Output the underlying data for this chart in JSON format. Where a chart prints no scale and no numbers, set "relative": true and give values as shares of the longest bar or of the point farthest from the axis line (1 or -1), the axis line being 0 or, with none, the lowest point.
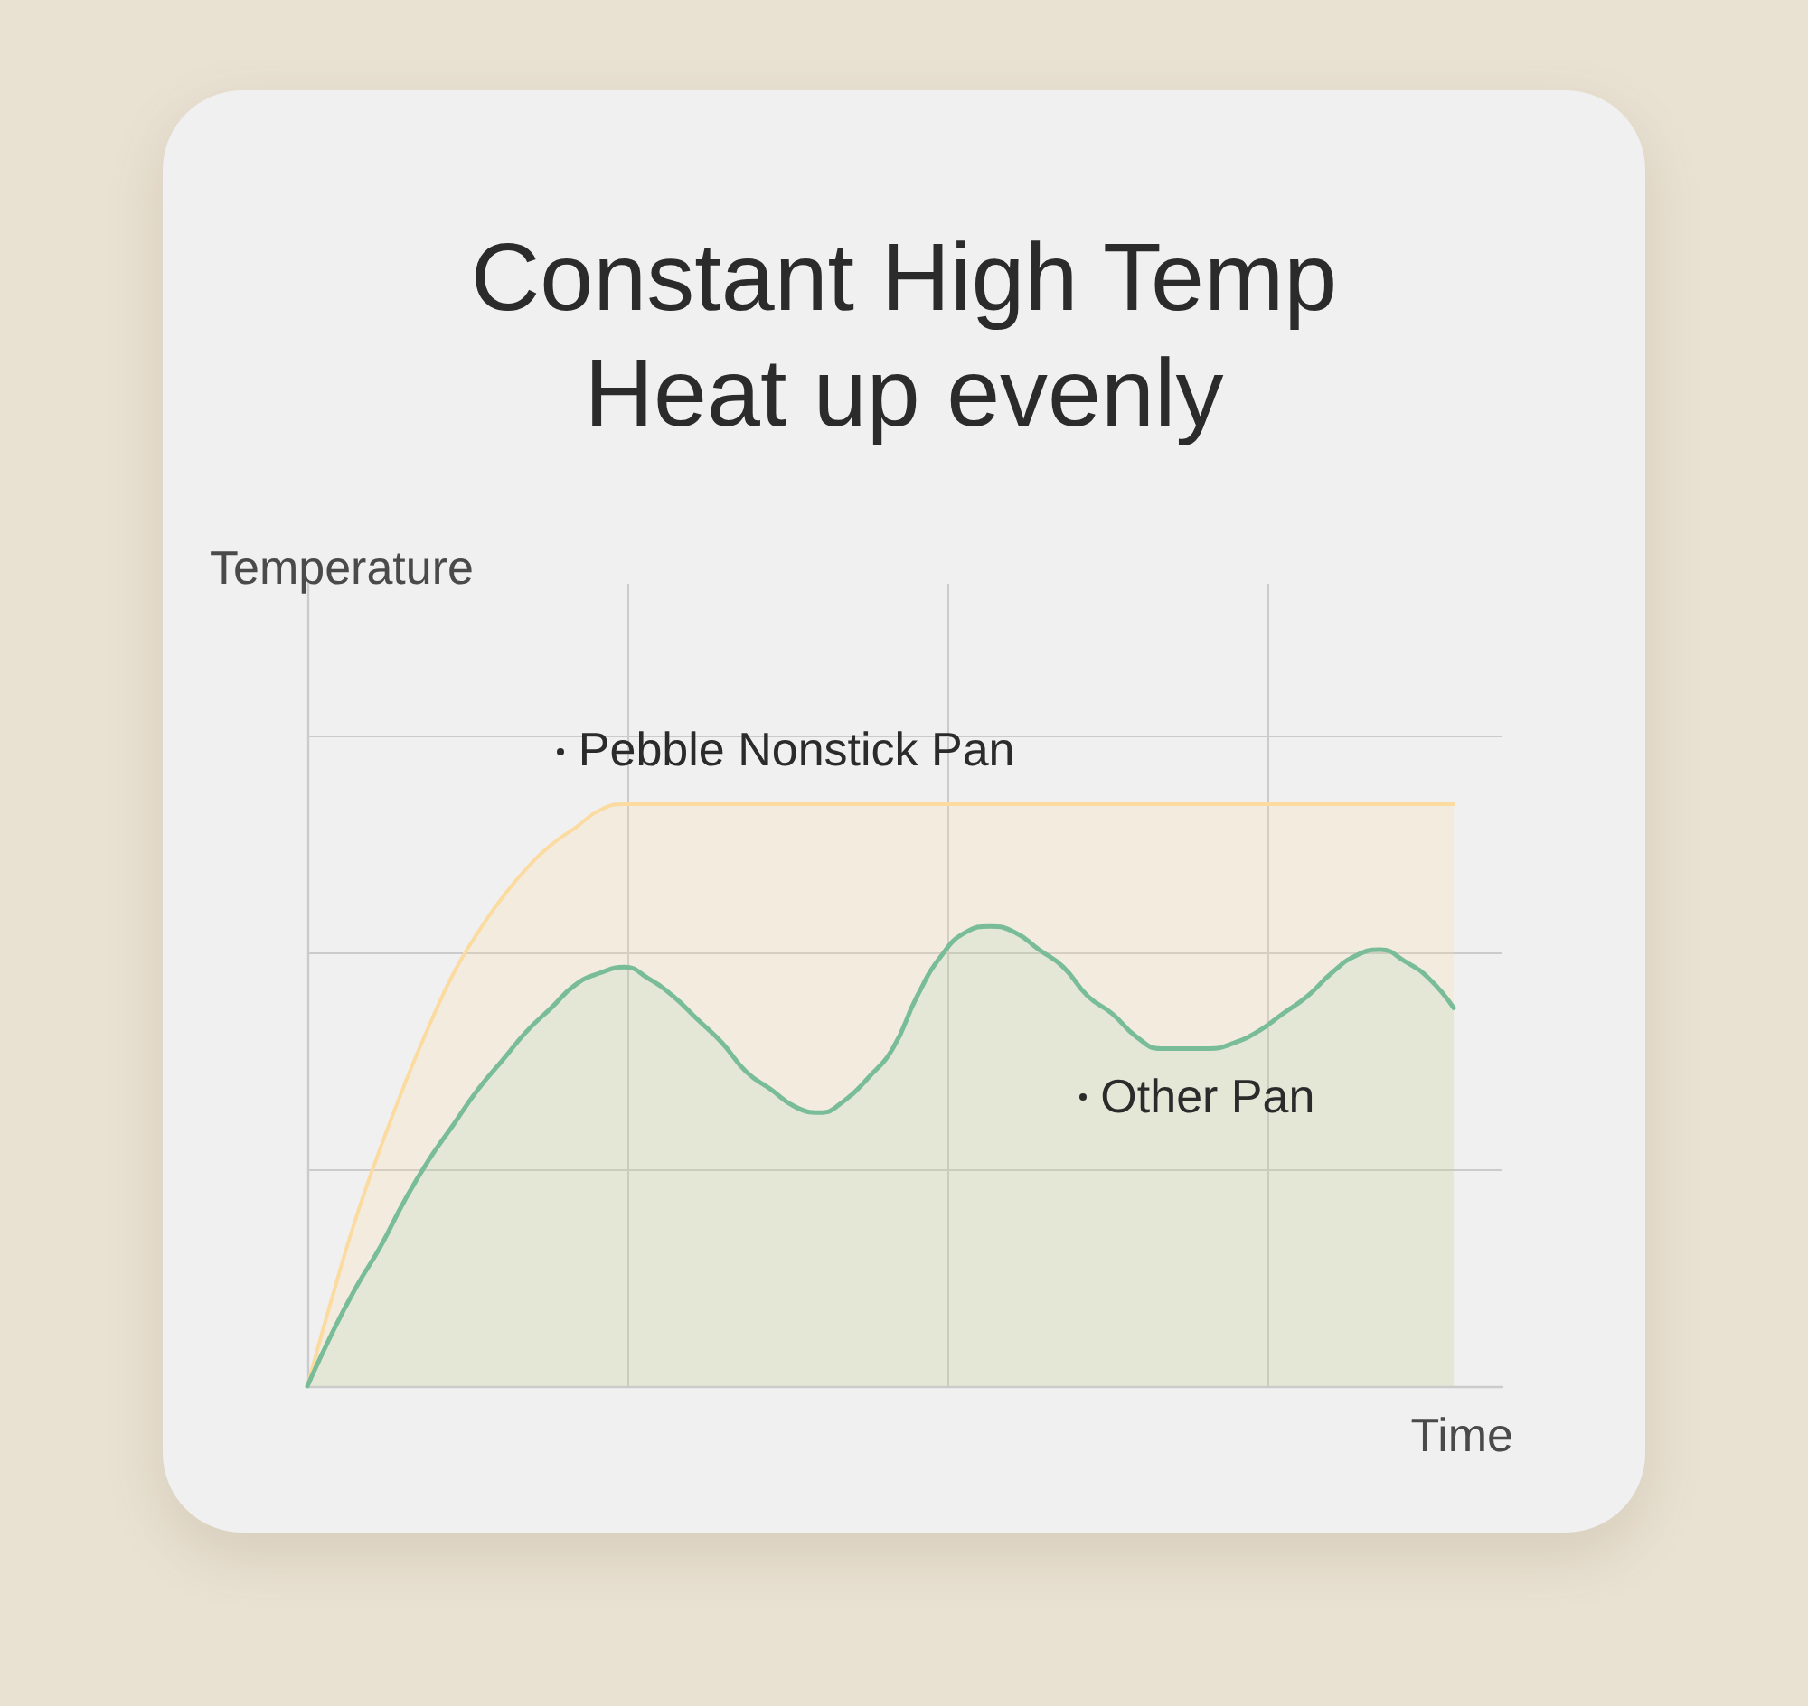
{
  "chart_data": {
    "type": "area",
    "title": "Constant High Temp",
    "subtitle": "Heat up evenly",
    "xlabel": "Time",
    "ylabel": "Temperature",
    "categories": [
      null,
      null,
      null,
      null,
      null,
      null,
      null,
      null,
      null,
      null,
      null,
      null,
      null,
      null,
      null,
      null,
      null,
      null,
      null,
      null,
      null,
      null,
      null,
      null,
      null,
      null,
      null,
      null,
      null,
      null,
      null,
      null,
      null,
      null,
      null,
      null,
      null,
      null,
      null,
      null,
      null,
      null,
      null,
      null,
      null,
      null,
      null,
      null,
      null,
      null
    ],
    "series": [
      {
        "name": "Pebble Nonstick Pan",
        "color": "#fbdba0",
        "values": [
          0,
          0.15,
          0.29,
          0.41,
          0.52,
          0.62,
          0.71,
          0.78,
          0.84,
          0.89,
          0.93,
          0.96,
          0.99,
          1,
          1,
          1,
          1,
          1,
          1,
          1,
          1,
          1,
          1,
          1,
          1,
          1,
          1,
          1,
          1,
          1,
          1,
          1,
          1,
          1,
          1,
          1,
          1,
          1,
          1,
          1,
          1,
          1,
          1,
          1,
          1,
          1,
          1,
          1,
          null,
          null
        ]
      },
      {
        "name": "Other Pan",
        "color": "#79bd98",
        "values": [
          0,
          0.09,
          0.17,
          0.24,
          0.32,
          0.39,
          0.45,
          0.51,
          0.56,
          0.61,
          0.65,
          0.69,
          0.71,
          0.72,
          0.7,
          0.67,
          0.63,
          0.59,
          0.54,
          0.51,
          0.48,
          0.47,
          0.49,
          0.53,
          0.58,
          0.67,
          0.74,
          0.78,
          0.79,
          0.78,
          0.75,
          0.72,
          0.67,
          0.64,
          0.6,
          0.58,
          0.58,
          0.58,
          0.59,
          0.61,
          0.64,
          0.67,
          0.71,
          0.74,
          0.75,
          0.73,
          0.7,
          0.65,
          null,
          null
        ]
      }
    ],
    "relative": true,
    "grid": true,
    "legend": false
  }
}
